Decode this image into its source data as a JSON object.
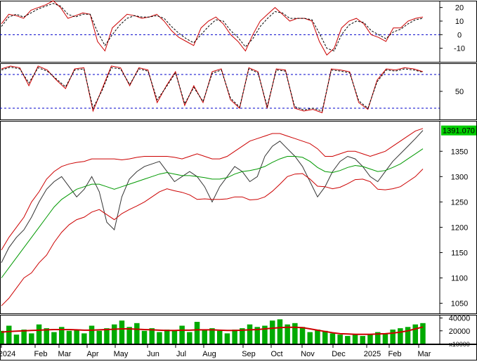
{
  "chart_data": [
    {
      "type": "line",
      "panel": "oscillator-top",
      "ylim": [
        -20,
        25
      ],
      "ticks": [
        20,
        10,
        0,
        -10
      ],
      "reference_lines": [
        0
      ],
      "grid": false,
      "series": [
        {
          "values": [
            8,
            15,
            14,
            12,
            18,
            20,
            22,
            25,
            20,
            12,
            14,
            16,
            15,
            -5,
            -12,
            5,
            10,
            15,
            14,
            12,
            13,
            15,
            10,
            3,
            -2,
            -5,
            -8,
            5,
            10,
            13,
            8,
            0,
            -5,
            -12,
            0,
            10,
            15,
            20,
            15,
            10,
            12,
            12,
            10,
            -5,
            -15,
            -10,
            5,
            10,
            12,
            8,
            0,
            -2,
            -5,
            5,
            5,
            10,
            12,
            13
          ]
        },
        {
          "values": [
            6,
            13,
            15,
            13,
            16,
            19,
            21,
            23,
            21,
            15,
            13,
            15,
            15,
            2,
            -8,
            0,
            7,
            12,
            14,
            13,
            13,
            14,
            12,
            6,
            1,
            -3,
            -6,
            0,
            6,
            11,
            10,
            3,
            -2,
            -9,
            -3,
            6,
            12,
            17,
            16,
            12,
            12,
            12,
            11,
            1,
            -10,
            -12,
            0,
            7,
            10,
            9,
            3,
            0,
            -3,
            2,
            4,
            8,
            11,
            12
          ]
        }
      ]
    },
    {
      "type": "line",
      "panel": "oscillator-middle",
      "ylim": [
        0,
        100
      ],
      "ticks": [
        50
      ],
      "reference_lines": [
        80,
        20
      ],
      "grid": false,
      "series": [
        {
          "values": [
            90,
            95,
            92,
            60,
            95,
            88,
            70,
            55,
            90,
            92,
            15,
            55,
            95,
            92,
            60,
            92,
            88,
            30,
            60,
            85,
            25,
            60,
            30,
            85,
            90,
            35,
            20,
            92,
            85,
            20,
            90,
            88,
            20,
            15,
            18,
            12,
            90,
            88,
            85,
            30,
            18,
            70,
            90,
            88,
            92,
            90,
            85
          ]
        },
        {
          "values": [
            88,
            93,
            90,
            65,
            92,
            86,
            72,
            58,
            88,
            90,
            20,
            52,
            92,
            90,
            62,
            90,
            86,
            35,
            58,
            83,
            28,
            57,
            32,
            82,
            88,
            38,
            22,
            90,
            83,
            23,
            88,
            86,
            23,
            17,
            20,
            15,
            88,
            86,
            83,
            33,
            20,
            67,
            88,
            86,
            90,
            88,
            84
          ]
        }
      ]
    },
    {
      "type": "line",
      "panel": "price",
      "ylim": [
        1030,
        1410
      ],
      "ticks": [
        1350,
        1300,
        1250,
        1200,
        1150,
        1100,
        1050
      ],
      "last_value_label": "1391.070",
      "grid": false,
      "series": [
        {
          "values": [
            1130,
            1160,
            1180,
            1195,
            1220,
            1250,
            1275,
            1290,
            1300,
            1280,
            1260,
            1275,
            1300,
            1270,
            1210,
            1195,
            1260,
            1295,
            1310,
            1320,
            1325,
            1330,
            1310,
            1290,
            1300,
            1310,
            1300,
            1280,
            1250,
            1280,
            1300,
            1320,
            1310,
            1290,
            1300,
            1340,
            1360,
            1370,
            1355,
            1340,
            1320,
            1290,
            1260,
            1280,
            1310,
            1330,
            1340,
            1335,
            1320,
            1300,
            1290,
            1310,
            1330,
            1345,
            1360,
            1375,
            1391.07
          ]
        },
        {
          "values": [
            1100,
            1120,
            1140,
            1160,
            1180,
            1200,
            1220,
            1240,
            1255,
            1265,
            1275,
            1280,
            1285,
            1285,
            1280,
            1275,
            1280,
            1285,
            1290,
            1295,
            1300,
            1305,
            1308,
            1305,
            1302,
            1302,
            1300,
            1298,
            1295,
            1295,
            1298,
            1305,
            1310,
            1312,
            1315,
            1320,
            1328,
            1335,
            1340,
            1340,
            1338,
            1330,
            1318,
            1310,
            1308,
            1312,
            1318,
            1322,
            1320,
            1315,
            1310,
            1312,
            1318,
            1325,
            1335,
            1345,
            1355
          ]
        },
        {
          "values": [
            1155,
            1180,
            1200,
            1220,
            1250,
            1270,
            1295,
            1310,
            1320,
            1325,
            1328,
            1330,
            1335,
            1335,
            1335,
            1335,
            1333,
            1335,
            1338,
            1340,
            1340,
            1340,
            1340,
            1338,
            1335,
            1340,
            1345,
            1340,
            1335,
            1335,
            1340,
            1350,
            1360,
            1370,
            1375,
            1380,
            1385,
            1385,
            1380,
            1375,
            1370,
            1365,
            1355,
            1340,
            1340,
            1345,
            1350,
            1350,
            1345,
            1340,
            1345,
            1350,
            1360,
            1370,
            1380,
            1390,
            1395
          ]
        },
        {
          "values": [
            1045,
            1060,
            1080,
            1100,
            1110,
            1130,
            1145,
            1170,
            1190,
            1205,
            1215,
            1220,
            1230,
            1235,
            1225,
            1215,
            1227,
            1235,
            1242,
            1250,
            1260,
            1270,
            1276,
            1272,
            1269,
            1264,
            1255,
            1256,
            1255,
            1255,
            1256,
            1260,
            1260,
            1254,
            1255,
            1260,
            1271,
            1285,
            1300,
            1305,
            1306,
            1295,
            1281,
            1280,
            1276,
            1279,
            1286,
            1294,
            1295,
            1290,
            1275,
            1274,
            1276,
            1280,
            1290,
            1300,
            1315
          ]
        }
      ]
    },
    {
      "type": "bar",
      "panel": "volume",
      "ylim": [
        0,
        45000
      ],
      "ticks": [
        40000,
        20000
      ],
      "unit_label": "x10000",
      "grid": false,
      "values": [
        20000,
        28000,
        14000,
        22000,
        16000,
        30000,
        24000,
        18000,
        26000,
        20000,
        22000,
        16000,
        28000,
        20000,
        24000,
        30000,
        36000,
        26000,
        32000,
        20000,
        24000,
        18000,
        22000,
        20000,
        28000,
        18000,
        34000,
        22000,
        24000,
        20000,
        16000,
        22000,
        24000,
        30000,
        26000,
        28000,
        36000,
        38000,
        30000,
        32000,
        26000,
        18000,
        22000,
        20000,
        16000,
        14000,
        12000,
        14000,
        12000,
        14000,
        18000,
        16000,
        22000,
        24000,
        26000,
        30000,
        32000
      ],
      "moving_average": [
        18000,
        19000,
        19500,
        20000,
        20500,
        21000,
        21500,
        22000,
        22000,
        22000,
        21500,
        21000,
        21000,
        21500,
        22000,
        22500,
        23000,
        23000,
        22500,
        22000,
        21500,
        21000,
        20500,
        20500,
        21000,
        21000,
        21500,
        21500,
        21500,
        21000,
        20500,
        20500,
        21000,
        21500,
        22000,
        23000,
        24000,
        25000,
        25500,
        25500,
        25000,
        23000,
        21000,
        19000,
        17000,
        15500,
        15000,
        14500,
        14500,
        14500,
        15000,
        15500,
        16500,
        18000,
        20000,
        23000,
        26000
      ]
    }
  ],
  "x_axis": {
    "labels": [
      "2024",
      "Feb",
      "Mar",
      "Apr",
      "May",
      "Jun",
      "Jul",
      "Aug",
      "Sep",
      "Oct",
      "Nov",
      "Dec",
      "2025",
      "Feb",
      "Mar"
    ]
  }
}
